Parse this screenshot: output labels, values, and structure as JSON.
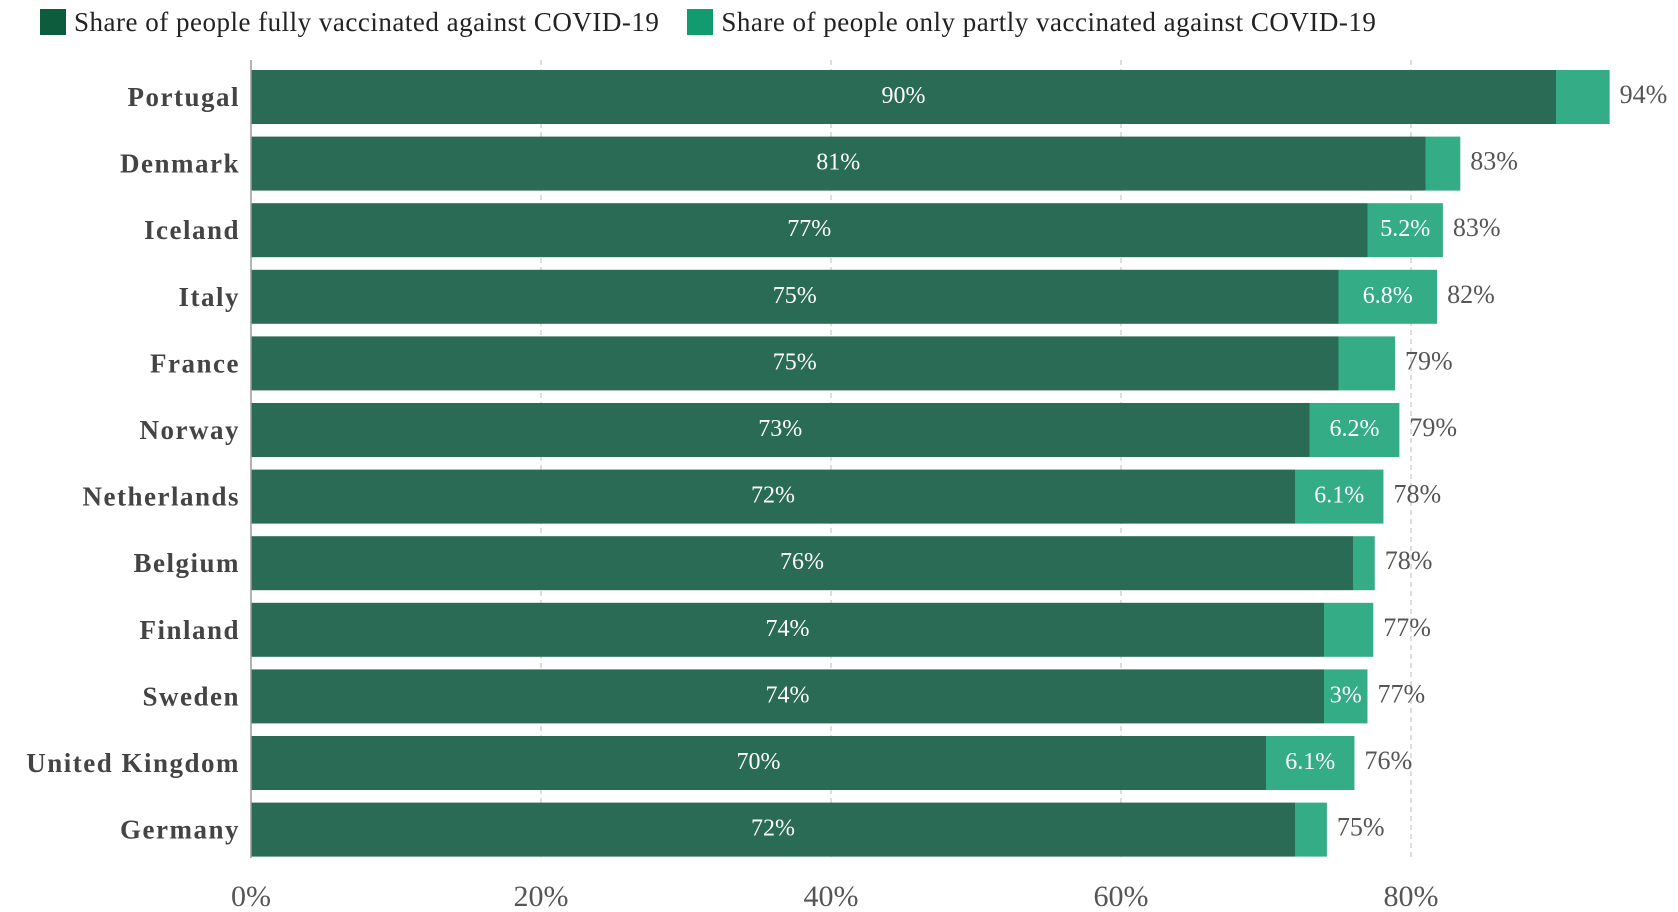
{
  "legend": {
    "full_label": "Share of people fully vaccinated against COVID-19",
    "partial_label": "Share of people only partly vaccinated against COVID-19"
  },
  "colors": {
    "full": "#2a6b55",
    "partial": "#34ac86",
    "legend_full": "#0d5c3e",
    "legend_partial": "#119b6f",
    "axis": "#9a9a9a",
    "grid": "#d4d4d4",
    "text": "#444444",
    "bar_label": "#ffffff"
  },
  "chart_data": {
    "type": "bar",
    "orientation": "horizontal",
    "stacked": true,
    "categories": [
      "Portugal",
      "Denmark",
      "Iceland",
      "Italy",
      "France",
      "Norway",
      "Netherlands",
      "Belgium",
      "Finland",
      "Sweden",
      "United Kingdom",
      "Germany"
    ],
    "series": [
      {
        "name": "Share of people fully vaccinated against COVID-19",
        "values": [
          90,
          81,
          77,
          75,
          75,
          73,
          72,
          76,
          74,
          74,
          70,
          72
        ],
        "labels": [
          "90%",
          "81%",
          "77%",
          "75%",
          "75%",
          "73%",
          "72%",
          "76%",
          "74%",
          "74%",
          "70%",
          "72%"
        ]
      },
      {
        "name": "Share of people only partly vaccinated against COVID-19",
        "values": [
          3.7,
          2.4,
          5.2,
          6.8,
          3.9,
          6.2,
          6.1,
          1.5,
          3.4,
          3,
          6.1,
          2.2
        ],
        "labels": [
          "",
          "",
          "5.2%",
          "6.8%",
          "",
          "6.2%",
          "6.1%",
          "",
          "",
          "3%",
          "6.1%",
          ""
        ]
      }
    ],
    "totals": [
      "94%",
      "83%",
      "83%",
      "82%",
      "79%",
      "79%",
      "78%",
      "78%",
      "77%",
      "77%",
      "76%",
      "75%"
    ],
    "x_ticks": [
      0,
      20,
      40,
      60,
      80
    ],
    "x_tick_labels": [
      "0%",
      "20%",
      "40%",
      "60%",
      "80%"
    ],
    "xlim": [
      0,
      100
    ],
    "grid": true,
    "legend_position": "top-left"
  }
}
